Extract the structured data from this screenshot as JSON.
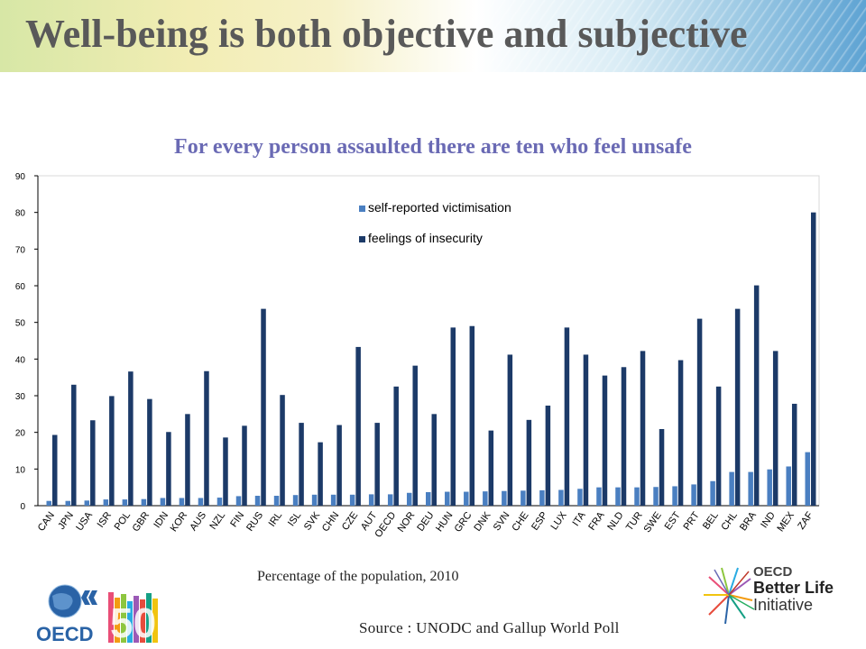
{
  "page": {
    "title": "Well-being is both objective and subjective",
    "chart_title": "For every person assaulted there are ten who feel unsafe",
    "subtitle": "Percentage of the population, 2010",
    "source": "Source : UNODC and Gallup World Poll"
  },
  "logos": {
    "oecd": "OECD",
    "fifty": "50",
    "bli_line1": "OECD",
    "bli_line2": "Better Life",
    "bli_line3": "Initiative"
  },
  "colors": {
    "victimisation": "#4a7fc1",
    "insecurity": "#1c3a68",
    "title": "#595959",
    "chart_title": "#6a6ab4"
  },
  "chart_data": {
    "type": "bar",
    "title": "For every person assaulted there are ten who feel unsafe",
    "xlabel": "",
    "ylabel": "",
    "ylim": [
      0,
      90
    ],
    "yticks": [
      0,
      10,
      20,
      30,
      40,
      50,
      60,
      70,
      80,
      90
    ],
    "legend_position": "top-center",
    "grid": false,
    "categories": [
      "CAN",
      "JPN",
      "USA",
      "ISR",
      "POL",
      "GBR",
      "IDN",
      "KOR",
      "AUS",
      "NZL",
      "FIN",
      "RUS",
      "IRL",
      "ISL",
      "SVK",
      "CHN",
      "CZE",
      "AUT",
      "OECD",
      "NOR",
      "DEU",
      "HUN",
      "GRC",
      "DNK",
      "SVN",
      "CHE",
      "ESP",
      "LUX",
      "ITA",
      "FRA",
      "NLD",
      "TUR",
      "SWE",
      "EST",
      "PRT",
      "BEL",
      "CHL",
      "BRA",
      "IND",
      "MEX",
      "ZAF"
    ],
    "series": [
      {
        "name": "self-reported victimisation",
        "values": [
          1.3,
          1.3,
          1.4,
          1.7,
          1.7,
          1.8,
          2.1,
          2.1,
          2.1,
          2.2,
          2.6,
          2.7,
          2.7,
          2.9,
          3.0,
          3.0,
          3.0,
          3.1,
          3.1,
          3.5,
          3.7,
          3.8,
          3.8,
          3.9,
          4.0,
          4.1,
          4.2,
          4.3,
          4.6,
          5.0,
          5.0,
          5.0,
          5.1,
          5.3,
          5.8,
          6.7,
          9.2,
          9.2,
          9.9,
          10.7,
          14.6
        ]
      },
      {
        "name": "feelings of insecurity",
        "values": [
          19.3,
          33.0,
          23.3,
          29.9,
          36.6,
          29.1,
          20.1,
          25.0,
          36.7,
          18.6,
          21.8,
          53.7,
          30.2,
          22.6,
          17.3,
          22.0,
          43.3,
          22.6,
          32.5,
          38.2,
          25.0,
          48.6,
          49.0,
          20.5,
          41.2,
          23.4,
          27.3,
          48.6,
          41.2,
          35.5,
          37.8,
          42.2,
          20.9,
          39.7,
          51.0,
          32.5,
          53.7,
          60.1,
          42.2,
          27.8,
          80.0
        ]
      }
    ]
  }
}
